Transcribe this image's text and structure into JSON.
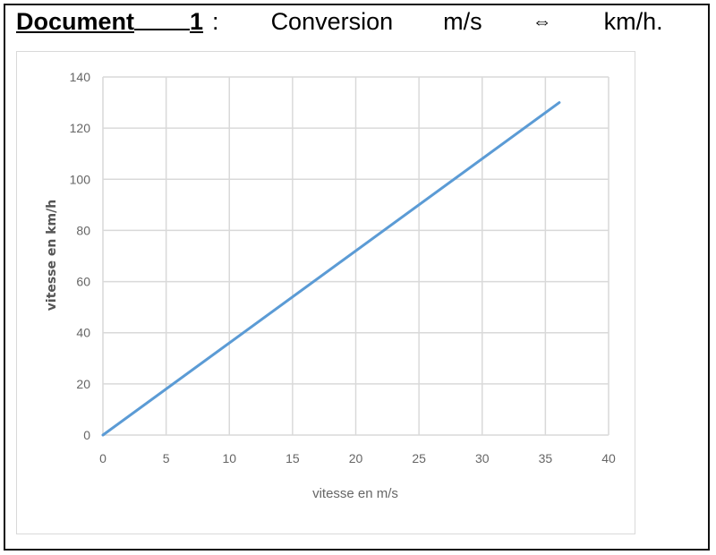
{
  "header": {
    "doc_label": "Document",
    "doc_number": "1",
    "colon": ":",
    "word1": "Conversion",
    "word2": "m/s",
    "arrow": "⇔",
    "word3": "km/h."
  },
  "chart_data": {
    "type": "line",
    "xlabel": "vitesse en m/s",
    "ylabel": "vitesse en km/h",
    "xlim": [
      0,
      40
    ],
    "ylim": [
      0,
      140
    ],
    "xticks": [
      0,
      5,
      10,
      15,
      20,
      25,
      30,
      35,
      40
    ],
    "yticks": [
      0,
      20,
      40,
      60,
      80,
      100,
      120,
      140
    ],
    "grid": true,
    "series": [
      {
        "x": [
          0,
          36.1
        ],
        "y": [
          0,
          130
        ],
        "color": "#5b9bd5"
      }
    ]
  }
}
